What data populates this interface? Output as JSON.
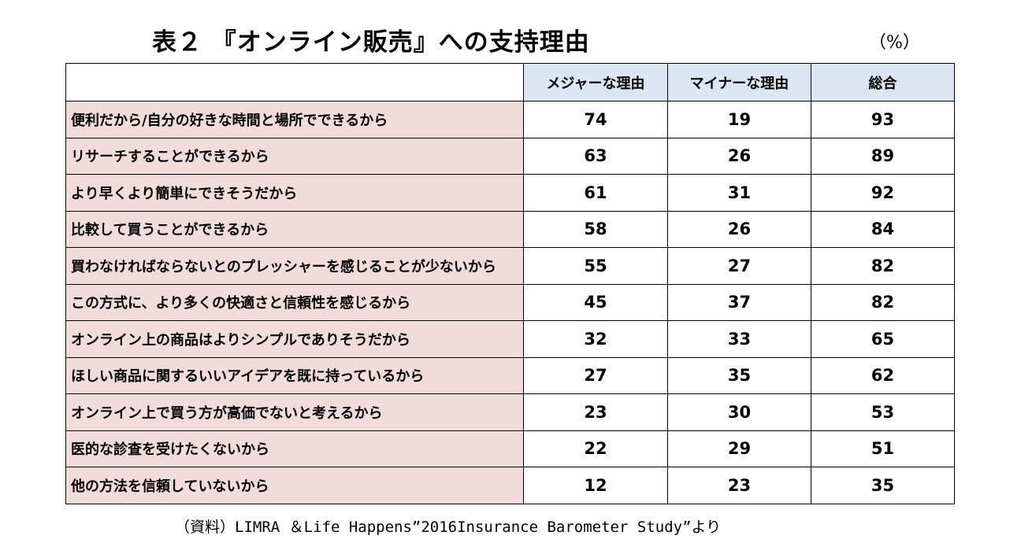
{
  "title": "表２ 『オンライン販売』への支持理由",
  "unit": "（%）",
  "table": {
    "headers": [
      "",
      "メジャーな理由",
      "マイナーな理由",
      "総合"
    ],
    "rows": [
      {
        "reason": "便利だから/自分の好きな時間と場所でできるから",
        "major": "74",
        "minor": "19",
        "total": "93"
      },
      {
        "reason": "リサーチすることができるから",
        "major": "63",
        "minor": "26",
        "total": "89"
      },
      {
        "reason": "より早くより簡単にできそうだから",
        "major": "61",
        "minor": "31",
        "total": "92"
      },
      {
        "reason": "比較して買うことができるから",
        "major": "58",
        "minor": "26",
        "total": "84"
      },
      {
        "reason": "買わなければならないとのプレッシャーを感じることが少ないから",
        "major": "55",
        "minor": "27",
        "total": "82"
      },
      {
        "reason": "この方式に、より多くの快適さと信頼性を感じるから",
        "major": "45",
        "minor": "37",
        "total": "82"
      },
      {
        "reason": "オンライン上の商品はよりシンプルでありそうだから",
        "major": "32",
        "minor": "33",
        "total": "65"
      },
      {
        "reason": "ほしい商品に関するいいアイデアを既に持っているから",
        "major": "27",
        "minor": "35",
        "total": "62"
      },
      {
        "reason": "オンライン上で買う方が高価でないと考えるから",
        "major": "23",
        "minor": "30",
        "total": "53"
      },
      {
        "reason": "医的な診査を受けたくないから",
        "major": "22",
        "minor": "29",
        "total": "51"
      },
      {
        "reason": "他の方法を信頼していないから",
        "major": "12",
        "minor": "23",
        "total": "35"
      }
    ]
  },
  "source": "（資料）LIMRA ＆Life Happens”2016Insurance Barometer Study”より",
  "colors": {
    "header_bg": "#dce6f1",
    "reason_bg": "#f2dcdb",
    "border": "#000000"
  }
}
